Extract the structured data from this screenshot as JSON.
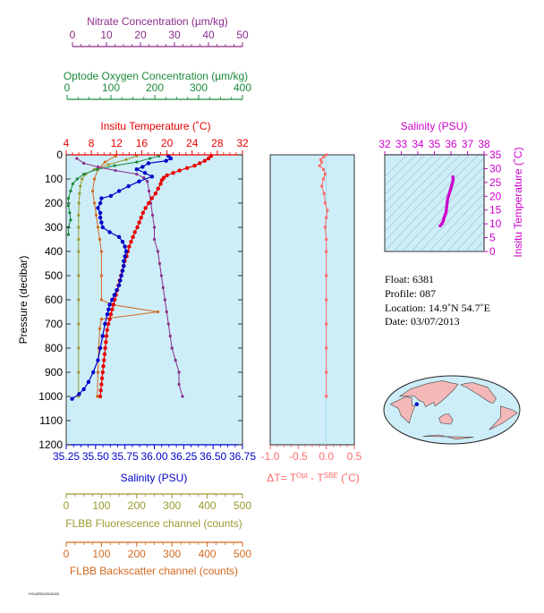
{
  "colors": {
    "nitrate": "#8b2c8b",
    "oxygen": "#1a8a3a",
    "temperature": "#e80000",
    "salinity_main": "#0000c8",
    "salinity_title": "#cc00cc",
    "fluorescence": "#9a9a30",
    "backscatter": "#d2691e",
    "delta_t": "#ff6a6a",
    "plot_bg": "#cdeef8",
    "frame": "#333333",
    "map_land": "#f4b8b8",
    "map_ocean": "#cdeef8"
  },
  "chart_data": [
    {
      "type": "line",
      "panel": "profile",
      "top_axes": [
        {
          "key": "nitrate",
          "label": "Nitrate Concentration (µm/kg)",
          "range": [
            0,
            50
          ],
          "ticks": [
            "0",
            "10",
            "20",
            "30",
            "40",
            "50"
          ]
        },
        {
          "key": "oxygen",
          "label": "Optode Oxygen Concentration (µm/kg)",
          "range": [
            0,
            400
          ],
          "ticks": [
            "0",
            "100",
            "200",
            "300",
            "400"
          ]
        },
        {
          "key": "temperature",
          "label": "Insitu Temperature (˚C)",
          "range": [
            4,
            32
          ],
          "ticks": [
            "4",
            "8",
            "12",
            "16",
            "20",
            "24",
            "28",
            "32"
          ]
        }
      ],
      "bottom_axes": [
        {
          "key": "salinity",
          "label": "Salinity (PSU)",
          "range": [
            35.25,
            36.75
          ],
          "ticks": [
            "35.25",
            "35.50",
            "35.75",
            "36.00",
            "36.25",
            "36.50",
            "36.75"
          ]
        },
        {
          "key": "fluorescence",
          "label": "FLBB Fluorescence channel (counts)",
          "range": [
            0,
            500
          ],
          "ticks": [
            "0",
            "100",
            "200",
            "300",
            "400",
            "500"
          ]
        },
        {
          "key": "backscatter",
          "label": "FLBB Backscatter channel (counts)",
          "range": [
            0,
            500
          ],
          "ticks": [
            "0",
            "100",
            "200",
            "300",
            "400",
            "500"
          ]
        }
      ],
      "ylabel": "Pressure (decibar)",
      "ylim": [
        1200,
        0
      ],
      "yticks": [
        "0",
        "100",
        "200",
        "300",
        "400",
        "500",
        "600",
        "700",
        "800",
        "900",
        "1000",
        "1100",
        "1200"
      ],
      "series": [
        {
          "key": "temperature",
          "points": [
            [
              27.0,
              5
            ],
            [
              26.6,
              15
            ],
            [
              26.0,
              25
            ],
            [
              25.2,
              35
            ],
            [
              24.4,
              45
            ],
            [
              23.2,
              55
            ],
            [
              22.0,
              65
            ],
            [
              21.0,
              75
            ],
            [
              20.0,
              85
            ],
            [
              19.5,
              95
            ],
            [
              19.2,
              105
            ],
            [
              19.0,
              120
            ],
            [
              18.6,
              140
            ],
            [
              18.2,
              160
            ],
            [
              17.6,
              180
            ],
            [
              17.1,
              200
            ],
            [
              16.6,
              220
            ],
            [
              16.2,
              240
            ],
            [
              15.9,
              260
            ],
            [
              15.6,
              280
            ],
            [
              15.3,
              300
            ],
            [
              14.9,
              320
            ],
            [
              14.6,
              340
            ],
            [
              14.3,
              360
            ],
            [
              14.0,
              380
            ],
            [
              13.8,
              400
            ],
            [
              13.6,
              420
            ],
            [
              13.3,
              440
            ],
            [
              13.1,
              460
            ],
            [
              12.9,
              480
            ],
            [
              12.7,
              500
            ],
            [
              12.5,
              520
            ],
            [
              12.3,
              540
            ],
            [
              12.1,
              560
            ],
            [
              11.9,
              580
            ],
            [
              11.7,
              600
            ],
            [
              11.5,
              620
            ],
            [
              11.3,
              640
            ],
            [
              11.1,
              660
            ],
            [
              10.9,
              680
            ],
            [
              10.7,
              700
            ],
            [
              10.5,
              725
            ],
            [
              10.4,
              750
            ],
            [
              10.3,
              775
            ],
            [
              10.2,
              800
            ],
            [
              10.1,
              825
            ],
            [
              10.0,
              850
            ],
            [
              9.9,
              875
            ],
            [
              9.8,
              900
            ],
            [
              9.7,
              925
            ],
            [
              9.6,
              950
            ],
            [
              9.5,
              975
            ],
            [
              9.4,
              1000
            ]
          ]
        },
        {
          "key": "salinity",
          "points": [
            [
              36.12,
              5
            ],
            [
              36.14,
              15
            ],
            [
              36.1,
              25
            ],
            [
              35.95,
              35
            ],
            [
              35.9,
              50
            ],
            [
              35.85,
              60
            ],
            [
              35.92,
              75
            ],
            [
              35.98,
              90
            ],
            [
              35.87,
              110
            ],
            [
              35.78,
              130
            ],
            [
              35.7,
              150
            ],
            [
              35.63,
              170
            ],
            [
              35.55,
              180
            ],
            [
              35.54,
              200
            ],
            [
              35.52,
              220
            ],
            [
              35.54,
              240
            ],
            [
              35.54,
              260
            ],
            [
              35.55,
              280
            ],
            [
              35.56,
              300
            ],
            [
              35.62,
              320
            ],
            [
              35.7,
              340
            ],
            [
              35.73,
              360
            ],
            [
              35.75,
              380
            ],
            [
              35.76,
              400
            ],
            [
              35.75,
              420
            ],
            [
              35.74,
              440
            ],
            [
              35.74,
              460
            ],
            [
              35.73,
              480
            ],
            [
              35.72,
              500
            ],
            [
              35.71,
              520
            ],
            [
              35.7,
              540
            ],
            [
              35.68,
              560
            ],
            [
              35.66,
              580
            ],
            [
              35.64,
              600
            ],
            [
              35.62,
              620
            ],
            [
              35.61,
              640
            ],
            [
              35.6,
              660
            ],
            [
              35.58,
              700
            ],
            [
              35.56,
              750
            ],
            [
              35.54,
              800
            ],
            [
              35.52,
              850
            ],
            [
              35.48,
              900
            ],
            [
              35.44,
              940
            ],
            [
              35.4,
              970
            ],
            [
              35.36,
              990
            ],
            [
              35.3,
              1010
            ]
          ]
        },
        {
          "key": "oxygen",
          "points": [
            [
              210,
              5
            ],
            [
              190,
              15
            ],
            [
              160,
              30
            ],
            [
              110,
              45
            ],
            [
              70,
              60
            ],
            [
              40,
              80
            ],
            [
              25,
              100
            ],
            [
              15,
              120
            ],
            [
              10,
              150
            ],
            [
              5,
              180
            ],
            [
              5,
              210
            ],
            [
              8,
              240
            ],
            [
              10,
              270
            ],
            [
              5,
              300
            ],
            [
              5,
              330
            ]
          ]
        },
        {
          "key": "nitrate",
          "points": [
            [
              3,
              15
            ],
            [
              5,
              35
            ],
            [
              9,
              50
            ],
            [
              14,
              65
            ],
            [
              20,
              80
            ],
            [
              22,
              95
            ],
            [
              23,
              110
            ],
            [
              23.5,
              150
            ],
            [
              24,
              200
            ],
            [
              24.5,
              250
            ],
            [
              25,
              300
            ],
            [
              25,
              350
            ],
            [
              26,
              400
            ],
            [
              26.5,
              450
            ],
            [
              27,
              500
            ],
            [
              27.5,
              550
            ],
            [
              28,
              600
            ],
            [
              28.5,
              650
            ],
            [
              29,
              700
            ],
            [
              29.5,
              750
            ],
            [
              30,
              800
            ],
            [
              31,
              850
            ],
            [
              32,
              900
            ],
            [
              32,
              950
            ],
            [
              33,
              1000
            ]
          ]
        },
        {
          "key": "fluorescence",
          "points": [
            [
              200,
              5
            ],
            [
              170,
              20
            ],
            [
              120,
              40
            ],
            [
              80,
              60
            ],
            [
              55,
              80
            ],
            [
              45,
              100
            ],
            [
              40,
              130
            ],
            [
              38,
              160
            ],
            [
              36,
              200
            ],
            [
              35,
              250
            ],
            [
              35,
              300
            ],
            [
              35,
              350
            ],
            [
              35,
              400
            ],
            [
              35,
              500
            ],
            [
              35,
              600
            ],
            [
              35,
              700
            ],
            [
              35,
              800
            ],
            [
              35,
              900
            ],
            [
              35,
              1000
            ]
          ]
        },
        {
          "key": "backscatter",
          "points": [
            [
              140,
              5
            ],
            [
              110,
              30
            ],
            [
              90,
              60
            ],
            [
              80,
              100
            ],
            [
              75,
              150
            ],
            [
              80,
              200
            ],
            [
              85,
              250
            ],
            [
              90,
              300
            ],
            [
              95,
              350
            ],
            [
              100,
              400
            ],
            [
              100,
              500
            ],
            [
              100,
              600
            ],
            [
              130,
              620
            ],
            [
              260,
              650
            ],
            [
              100,
              680
            ],
            [
              95,
              720
            ],
            [
              92,
              800
            ],
            [
              90,
              900
            ],
            [
              88,
              1000
            ]
          ]
        }
      ]
    },
    {
      "type": "line",
      "panel": "delta_t",
      "xlabel_main": "ΔT= T",
      "xlabel_sup1": "Opt",
      "xlabel_mid": " - T",
      "xlabel_sup2": "SBE",
      "xlabel_end": " (˚C)",
      "xlim": [
        -1.0,
        0.5
      ],
      "xticks": [
        "-1.0",
        "-0.5",
        "0.0",
        "0.5"
      ],
      "ylim": [
        1200,
        0
      ],
      "series": [
        {
          "key": "delta_t",
          "points": [
            [
              0.0,
              0
            ],
            [
              -0.05,
              10
            ],
            [
              -0.1,
              20
            ],
            [
              -0.08,
              30
            ],
            [
              -0.12,
              45
            ],
            [
              -0.05,
              60
            ],
            [
              -0.02,
              80
            ],
            [
              -0.05,
              100
            ],
            [
              -0.08,
              130
            ],
            [
              -0.04,
              160
            ],
            [
              -0.02,
              200
            ],
            [
              0.02,
              230
            ],
            [
              0.0,
              260
            ],
            [
              -0.02,
              300
            ],
            [
              0.0,
              350
            ],
            [
              0.0,
              400
            ],
            [
              0.0,
              500
            ],
            [
              0.0,
              600
            ],
            [
              0.0,
              700
            ],
            [
              0.0,
              800
            ],
            [
              0.0,
              900
            ],
            [
              0.0,
              1000
            ]
          ]
        }
      ]
    },
    {
      "type": "scatter",
      "panel": "ts_diagram",
      "title": "Salinity (PSU)",
      "xlim": [
        32,
        38
      ],
      "xticks": [
        "32",
        "33",
        "34",
        "35",
        "36",
        "37",
        "38"
      ],
      "ylim": [
        0,
        35
      ],
      "yticks": [
        "0",
        "5",
        "10",
        "15",
        "20",
        "25",
        "30",
        "35"
      ],
      "ylabel": "Insitu Temperature (˚C)",
      "series": [
        {
          "key": "ts",
          "points": [
            [
              35.35,
              9.3
            ],
            [
              35.45,
              10.0
            ],
            [
              35.52,
              10.8
            ],
            [
              35.56,
              11.6
            ],
            [
              35.6,
              12.5
            ],
            [
              35.65,
              13.3
            ],
            [
              35.7,
              14.0
            ],
            [
              35.72,
              15.0
            ],
            [
              35.74,
              16.0
            ],
            [
              35.76,
              17.0
            ],
            [
              35.78,
              18.0
            ],
            [
              35.8,
              19.0
            ],
            [
              35.85,
              20.0
            ],
            [
              35.9,
              21.0
            ],
            [
              35.95,
              22.0
            ],
            [
              36.0,
              23.0
            ],
            [
              36.05,
              24.0
            ],
            [
              36.1,
              25.0
            ],
            [
              36.13,
              26.0
            ],
            [
              36.12,
              27.0
            ]
          ]
        }
      ]
    }
  ],
  "info": {
    "float": "Float:  6381",
    "profile": "Profile:  087",
    "location": "Location:  14.9˚N  54.7˚E",
    "date": "Date:  03/07/2013"
  },
  "map": {
    "marker_lon": 54.7,
    "marker_lat": 14.9
  },
  "footer": {
    "tag": "FIGURE0/2013003"
  }
}
